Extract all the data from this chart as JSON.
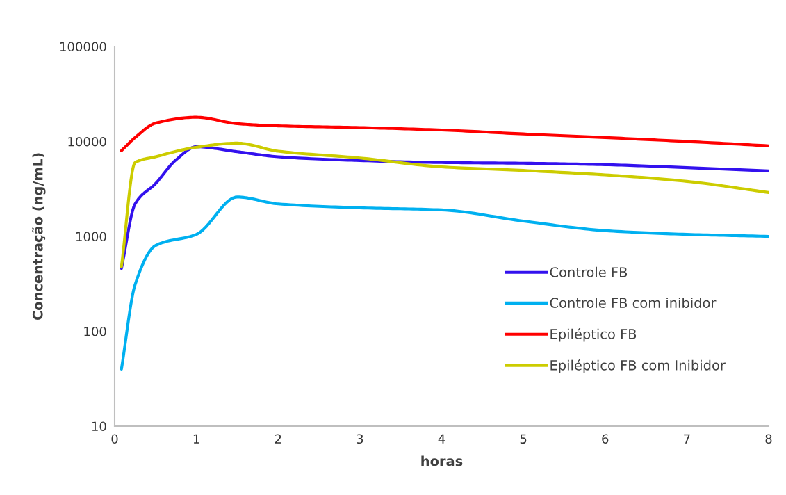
{
  "chart_data": {
    "type": "line",
    "xlabel": "horas",
    "ylabel": "Concentração (ng/mL)",
    "x": [
      0.083,
      0.25,
      0.5,
      1,
      1.5,
      2,
      3,
      4,
      5,
      6,
      7,
      8
    ],
    "series": [
      {
        "name": "Controle FB",
        "color": "#3311ee",
        "x": [
          0.083,
          0.25,
          0.5,
          0.75,
          1,
          1.5,
          2,
          3,
          4,
          5,
          6,
          7,
          8
        ],
        "values": [
          460,
          2200,
          3600,
          6400,
          8800,
          7800,
          6900,
          6300,
          6000,
          5900,
          5700,
          5300,
          4900
        ]
      },
      {
        "name": "Controle FB com inibidor",
        "color": "#00b0f0",
        "values": [
          40,
          310,
          800,
          1050,
          2600,
          2200,
          2000,
          1900,
          1450,
          1150,
          1050,
          1000
        ]
      },
      {
        "name": "Epiléptico FB",
        "color": "#ff0000",
        "values": [
          8000,
          11000,
          15600,
          18000,
          15400,
          14600,
          14000,
          13200,
          12000,
          11000,
          10000,
          9000
        ]
      },
      {
        "name": "Epiléptico FB com Inibidor",
        "color": "#cccc00",
        "values": [
          480,
          6000,
          6900,
          8700,
          9600,
          7900,
          6700,
          5400,
          4950,
          4450,
          3800,
          2900
        ]
      }
    ],
    "log": "y",
    "xlim": [
      0,
      8
    ],
    "xticks": [
      0,
      1,
      2,
      3,
      4,
      5,
      6,
      7,
      8
    ],
    "ylim": [
      10,
      100000
    ],
    "yticks": [
      10,
      100,
      1000,
      10000,
      100000
    ],
    "legend": "right",
    "grid": false,
    "line_style": "solid",
    "marker": "none"
  }
}
